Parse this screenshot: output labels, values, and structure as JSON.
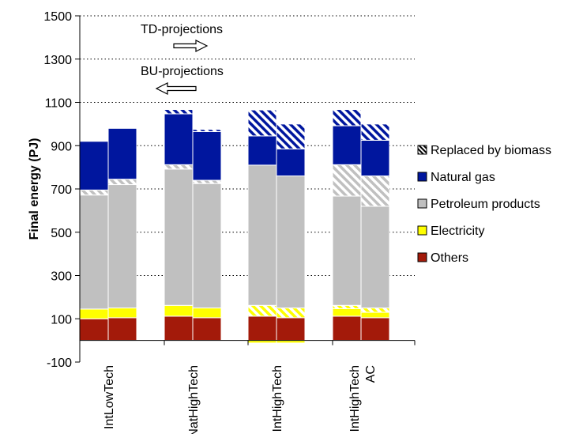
{
  "chart_data": {
    "type": "bar",
    "stacked": true,
    "ylabel": "Final energy (PJ)",
    "ylim": [
      -100,
      1500
    ],
    "yticks": [
      -100,
      100,
      300,
      500,
      700,
      900,
      1100,
      1300,
      1500
    ],
    "grid": "horizontal dotted",
    "legend_position": "right",
    "groups": [
      {
        "label": "IntLowTech",
        "label_lines": [
          "IntLowTech"
        ]
      },
      {
        "label": "NatHighTech",
        "label_lines": [
          "NatHighTech"
        ]
      },
      {
        "label": "IntHighTech",
        "label_lines": [
          "IntHighTech"
        ]
      },
      {
        "label": "IntHighTech AC",
        "label_lines": [
          "IntHighTech",
          "AC"
        ]
      }
    ],
    "bars_per_group": [
      "TD-projections",
      "BU-projections"
    ],
    "series": [
      {
        "name": "Others",
        "color": "#a31a0a",
        "pattern": "solid",
        "values": [
          [
            100,
            105
          ],
          [
            112,
            105
          ],
          [
            112,
            105
          ],
          [
            112,
            105
          ]
        ]
      },
      {
        "name": "Electricity",
        "color": "#ffff00",
        "pattern": "solid",
        "values": [
          [
            45,
            45
          ],
          [
            50,
            45
          ],
          [
            0,
            0
          ],
          [
            35,
            25
          ]
        ]
      },
      {
        "name": "Electricity replaced by biomass",
        "color": "#ffff00",
        "pattern": "hatch",
        "values": [
          [
            0,
            0
          ],
          [
            0,
            0
          ],
          [
            50,
            45
          ],
          [
            15,
            20
          ]
        ]
      },
      {
        "name": "Electricity negative",
        "color": "#ffff00",
        "pattern": "solid",
        "values": [
          [
            0,
            0
          ],
          [
            0,
            0
          ],
          [
            -12,
            -12
          ],
          [
            0,
            0
          ]
        ]
      },
      {
        "name": "Petroleum products",
        "color": "#c0c0c0",
        "pattern": "solid",
        "values": [
          [
            527,
            570
          ],
          [
            630,
            575
          ],
          [
            648,
            610
          ],
          [
            505,
            470
          ]
        ]
      },
      {
        "name": "Petroleum products replaced by biomass",
        "color": "#c0c0c0",
        "pattern": "hatch",
        "values": [
          [
            23,
            25
          ],
          [
            20,
            15
          ],
          [
            0,
            0
          ],
          [
            145,
            140
          ]
        ]
      },
      {
        "name": "Natural gas",
        "color": "#00169e",
        "pattern": "solid",
        "values": [
          [
            225,
            235
          ],
          [
            235,
            225
          ],
          [
            135,
            125
          ],
          [
            180,
            165
          ]
        ]
      },
      {
        "name": "Natural gas replaced by biomass",
        "color": "#00169e",
        "pattern": "hatch",
        "values": [
          [
            0,
            0
          ],
          [
            20,
            10
          ],
          [
            120,
            115
          ],
          [
            75,
            75
          ]
        ]
      }
    ],
    "legend": [
      {
        "label": "Replaced by biomass",
        "swatch": "hatch"
      },
      {
        "label": "Natural gas",
        "swatch": "#00169e"
      },
      {
        "label": "Petroleum products",
        "swatch": "#c0c0c0"
      },
      {
        "label": "Electricity",
        "swatch": "#ffff00"
      },
      {
        "label": "Others",
        "swatch": "#a31a0a"
      }
    ],
    "annotations": [
      {
        "text": "TD-projections",
        "arrow": "right"
      },
      {
        "text": "BU-projections",
        "arrow": "left"
      }
    ]
  }
}
